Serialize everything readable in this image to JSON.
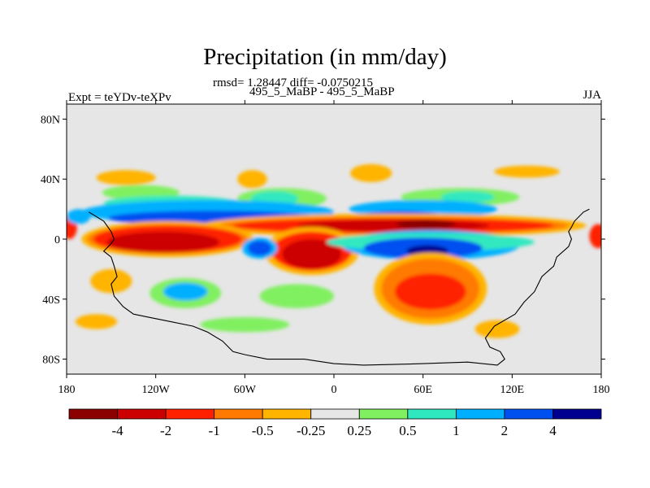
{
  "chart_data": {
    "type": "heatmap",
    "title": "Precipitation (in mm/day)",
    "stats": "rmsd= 1.28447  diff= -0.0750215",
    "subtitle": "495_5_MaBP - 495_5_MaBP",
    "left_label": "Expt = teYDv-teXPv",
    "right_label": "JJA",
    "xlim": [
      -180,
      180
    ],
    "ylim": [
      -90,
      90
    ],
    "x_ticks": [
      {
        "value": -180,
        "label": "180"
      },
      {
        "value": -120,
        "label": "120W"
      },
      {
        "value": -60,
        "label": "60W"
      },
      {
        "value": 0,
        "label": "0"
      },
      {
        "value": 60,
        "label": "60E"
      },
      {
        "value": 120,
        "label": "120E"
      },
      {
        "value": 180,
        "label": "180"
      }
    ],
    "y_ticks": [
      {
        "value": 80,
        "label": "80N"
      },
      {
        "value": 40,
        "label": "40N"
      },
      {
        "value": 0,
        "label": "0"
      },
      {
        "value": -40,
        "label": "40S"
      },
      {
        "value": -80,
        "label": "80S"
      }
    ],
    "levels": [
      -4,
      -2,
      -1,
      -0.5,
      -0.25,
      0.25,
      0.5,
      1,
      2,
      4
    ],
    "level_labels": [
      "-4",
      "-2",
      "-1",
      "-0.5",
      "-0.25",
      "0.25",
      "0.5",
      "1",
      "2",
      "4"
    ],
    "colors": [
      "#8b0000",
      "#cc0000",
      "#ff2000",
      "#ff7a00",
      "#ffb400",
      "#e6e6e6",
      "#80f060",
      "#30e8c0",
      "#00b0ff",
      "#0050f0",
      "#000090"
    ],
    "background_color": "#e6e6e6",
    "regions": [
      {
        "color": "#ffb400",
        "lon": -140,
        "lat": 41,
        "dlon": 20,
        "dlat": 5
      },
      {
        "color": "#ffb400",
        "lon": -55,
        "lat": 40,
        "dlon": 10,
        "dlat": 6
      },
      {
        "color": "#ffb400",
        "lon": 25,
        "lat": 44,
        "dlon": 14,
        "dlat": 6
      },
      {
        "color": "#ffb400",
        "lon": 130,
        "lat": 45,
        "dlon": 22,
        "dlat": 4
      },
      {
        "color": "#80f060",
        "lon": -130,
        "lat": 31,
        "dlon": 26,
        "dlat": 5
      },
      {
        "color": "#80f060",
        "lon": -35,
        "lat": 27,
        "dlon": 30,
        "dlat": 7
      },
      {
        "color": "#80f060",
        "lon": 85,
        "lat": 28,
        "dlon": 40,
        "dlat": 6
      },
      {
        "color": "#30e8c0",
        "lon": -40,
        "lat": 27,
        "dlon": 16,
        "dlat": 5
      },
      {
        "color": "#30e8c0",
        "lon": 90,
        "lat": 28,
        "dlon": 18,
        "dlat": 4
      },
      {
        "color": "#30e8c0",
        "lon": -110,
        "lat": 24,
        "dlon": 45,
        "dlat": 5
      },
      {
        "color": "#00b0ff",
        "lon": -85,
        "lat": 18,
        "dlon": 85,
        "dlat": 8
      },
      {
        "color": "#00b0ff",
        "lon": 60,
        "lat": 20,
        "dlon": 50,
        "dlat": 6
      },
      {
        "color": "#0050f0",
        "lon": -80,
        "lat": 14,
        "dlon": 72,
        "dlat": 5
      },
      {
        "color": "#0050f0",
        "lon": 45,
        "lat": 15,
        "dlon": 28,
        "dlat": 4
      },
      {
        "color": "#ffb400",
        "lon": 40,
        "lat": 9,
        "dlon": 130,
        "dlat": 8
      },
      {
        "color": "#ff7a00",
        "lon": 40,
        "lat": 9,
        "dlon": 118,
        "dlat": 6
      },
      {
        "color": "#ff2000",
        "lon": 40,
        "lat": 9,
        "dlon": 108,
        "dlat": 5
      },
      {
        "color": "#cc0000",
        "lon": 40,
        "lat": 9,
        "dlon": 65,
        "dlat": 4
      },
      {
        "color": "#8b0000",
        "lon": 62,
        "lat": 10,
        "dlon": 20,
        "dlat": 3
      },
      {
        "color": "#ffb400",
        "lon": -112,
        "lat": 0,
        "dlon": 58,
        "dlat": 12
      },
      {
        "color": "#ff7a00",
        "lon": -112,
        "lat": 0,
        "dlon": 54,
        "dlat": 10
      },
      {
        "color": "#ff2000",
        "lon": -112,
        "lat": 0,
        "dlon": 50,
        "dlat": 9
      },
      {
        "color": "#cc0000",
        "lon": -115,
        "lat": -2,
        "dlon": 38,
        "dlat": 7
      },
      {
        "color": "#ffb400",
        "lon": -15,
        "lat": -8,
        "dlon": 32,
        "dlat": 16
      },
      {
        "color": "#ff2000",
        "lon": -15,
        "lat": -8,
        "dlon": 27,
        "dlat": 13
      },
      {
        "color": "#cc0000",
        "lon": -15,
        "lat": -10,
        "dlon": 20,
        "dlat": 10
      },
      {
        "color": "#00b0ff",
        "lon": 65,
        "lat": -4,
        "dlon": 60,
        "dlat": 10
      },
      {
        "color": "#30e8c0",
        "lon": 65,
        "lat": -2,
        "dlon": 70,
        "dlat": 6
      },
      {
        "color": "#0050f0",
        "lon": 60,
        "lat": -6,
        "dlon": 40,
        "dlat": 7
      },
      {
        "color": "#000090",
        "lon": 63,
        "lat": -8,
        "dlon": 14,
        "dlat": 4
      },
      {
        "color": "#00b0ff",
        "lon": -50,
        "lat": -6,
        "dlon": 12,
        "dlat": 7
      },
      {
        "color": "#0050f0",
        "lon": -50,
        "lat": -6,
        "dlon": 8,
        "dlat": 5
      },
      {
        "color": "#ffb400",
        "lon": 65,
        "lat": -33,
        "dlon": 38,
        "dlat": 24
      },
      {
        "color": "#ff7a00",
        "lon": 65,
        "lat": -33,
        "dlon": 33,
        "dlat": 20
      },
      {
        "color": "#ff2000",
        "lon": 65,
        "lat": -35,
        "dlon": 24,
        "dlat": 12
      },
      {
        "color": "#80f060",
        "lon": -100,
        "lat": -36,
        "dlon": 24,
        "dlat": 10
      },
      {
        "color": "#00b0ff",
        "lon": -100,
        "lat": -35,
        "dlon": 15,
        "dlat": 6
      },
      {
        "color": "#80f060",
        "lon": -25,
        "lat": -38,
        "dlon": 25,
        "dlat": 8
      },
      {
        "color": "#ffb400",
        "lon": -150,
        "lat": -28,
        "dlon": 14,
        "dlat": 8
      },
      {
        "color": "#ffb400",
        "lon": -160,
        "lat": -55,
        "dlon": 14,
        "dlat": 5
      },
      {
        "color": "#80f060",
        "lon": -60,
        "lat": -57,
        "dlon": 30,
        "dlat": 5
      },
      {
        "color": "#ffb400",
        "lon": 110,
        "lat": -60,
        "dlon": 15,
        "dlat": 6
      },
      {
        "color": "#ff2000",
        "lon": -178,
        "lat": 8,
        "dlon": 5,
        "dlat": 8
      },
      {
        "color": "#ff2000",
        "lon": 178,
        "lat": 2,
        "dlon": 6,
        "dlat": 8
      },
      {
        "color": "#00b0ff",
        "lon": -172,
        "lat": 15,
        "dlon": 8,
        "dlat": 5
      }
    ],
    "coastline": [
      [
        -165,
        18
      ],
      [
        -160,
        15
      ],
      [
        -155,
        12
      ],
      [
        -150,
        5
      ],
      [
        -148,
        0
      ],
      [
        -150,
        -3
      ],
      [
        -155,
        -8
      ],
      [
        -150,
        -12
      ],
      [
        -148,
        -18
      ],
      [
        -146,
        -25
      ],
      [
        -150,
        -30
      ],
      [
        -148,
        -38
      ],
      [
        -142,
        -45
      ],
      [
        -135,
        -50
      ],
      [
        -125,
        -52
      ],
      [
        -110,
        -55
      ],
      [
        -95,
        -58
      ],
      [
        -85,
        -62
      ],
      [
        -75,
        -68
      ],
      [
        -68,
        -75
      ],
      [
        -60,
        -77
      ],
      [
        -45,
        -80
      ],
      [
        -20,
        -80
      ],
      [
        0,
        -83
      ],
      [
        20,
        -84
      ],
      [
        60,
        -83
      ],
      [
        90,
        -82
      ],
      [
        110,
        -84
      ],
      [
        115,
        -80
      ],
      [
        112,
        -75
      ],
      [
        105,
        -72
      ],
      [
        102,
        -66
      ],
      [
        108,
        -58
      ],
      [
        122,
        -50
      ],
      [
        128,
        -42
      ],
      [
        135,
        -35
      ],
      [
        140,
        -25
      ],
      [
        148,
        -18
      ],
      [
        150,
        -12
      ],
      [
        158,
        -5
      ],
      [
        160,
        0
      ],
      [
        158,
        5
      ],
      [
        160,
        8
      ],
      [
        162,
        12
      ],
      [
        168,
        18
      ],
      [
        172,
        20
      ]
    ]
  }
}
